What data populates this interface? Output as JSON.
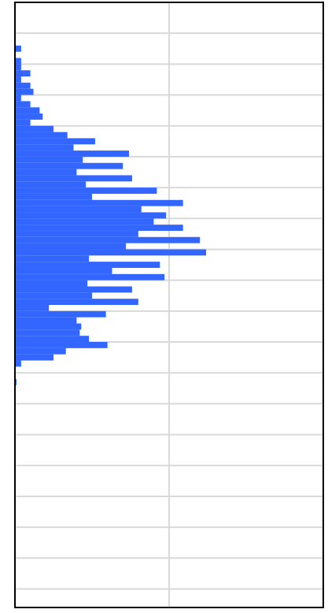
{
  "chart_data": {
    "type": "bar",
    "orientation": "horizontal",
    "title": "",
    "xlabel": "",
    "ylabel": "",
    "xlim": [
      0,
      2
    ],
    "ylim": [
      0,
      98
    ],
    "grid": true,
    "legend": "none",
    "bin_start": 7,
    "bin_width": 1,
    "values": [
      0.04,
      0.0,
      0.04,
      0.04,
      0.1,
      0.04,
      0.1,
      0.12,
      0.04,
      0.1,
      0.16,
      0.18,
      0.1,
      0.25,
      0.34,
      0.52,
      0.38,
      0.74,
      0.44,
      0.7,
      0.4,
      0.76,
      0.46,
      0.92,
      0.5,
      1.09,
      0.82,
      0.98,
      0.9,
      1.09,
      0.8,
      1.2,
      0.72,
      1.24,
      0.48,
      0.94,
      0.63,
      0.97,
      0.47,
      0.76,
      0.5,
      0.8,
      0.22,
      0.59,
      0.4,
      0.43,
      0.42,
      0.48,
      0.6,
      0.33,
      0.25,
      0.04,
      0.0,
      0.0,
      0.01
    ]
  },
  "colors": {
    "bar": "#3366ff",
    "grid": "#d9d9d9",
    "frame": "#000000"
  }
}
